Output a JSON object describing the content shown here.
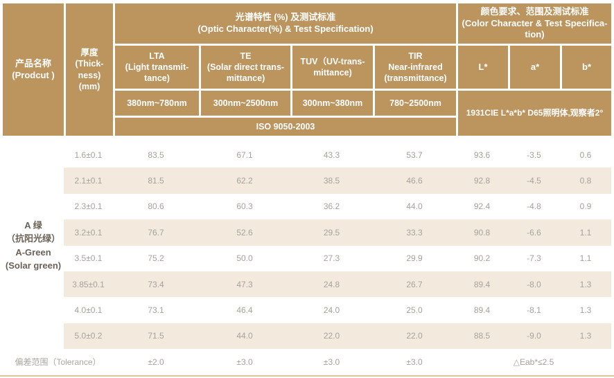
{
  "colors": {
    "header_bg": "#bb945e",
    "stripe_bg": "#f3eadd",
    "value_text": "#a5a29d",
    "product_text": "#6b6157",
    "tolerance_text": "#aaa69f",
    "bottom_line": "#ddc59e"
  },
  "header": {
    "product_col": "产品名称\n(Prodcut )",
    "thickness_col": "厚度\n(Thick-\nness)\n(mm)",
    "optic_section": "光谱特性 (%) 及测试标准\n(Optic Character(%) & Test Specification)",
    "color_section": "颜色要求、范围及测试标准\n(Color Character & Test Specifica-\ntion)",
    "columns": {
      "lta": {
        "title": "LTA\n(Light transmit-\ntance)",
        "range": "380nm~780nm"
      },
      "te": {
        "title": "TE\n(Solar direct trans-\nmittance)",
        "range": "300nm~2500nm"
      },
      "tuv": {
        "title": "TUV（UV-trans-\nmittance)",
        "range": "300nm~380nm"
      },
      "tir": {
        "title": "TIR\nNear-infrared\n(transmittance)",
        "range": "780~2500nm"
      },
      "l": "L*",
      "a": "a*",
      "b": "b*"
    },
    "iso_standard": "ISO 9050-2003",
    "cie_standard": "1931CIE L*a*b*  D65照明体,观察者2°"
  },
  "product": {
    "name": "A 绿\n（抗阳光绿）\nA-Green\n(Solar green)"
  },
  "rows": [
    {
      "thickness": "1.6±0.1",
      "lta": "83.5",
      "te": "67.1",
      "tuv": "43.3",
      "tir": "53.7",
      "l": "93.6",
      "a": "-3.5",
      "b": "0.6"
    },
    {
      "thickness": "2.1±0.1",
      "lta": "81.5",
      "te": "62.2",
      "tuv": "38.5",
      "tir": "46.6",
      "l": "92.8",
      "a": "-4.5",
      "b": "0.8"
    },
    {
      "thickness": "2.3±0.1",
      "lta": "80.6",
      "te": "60.3",
      "tuv": "36.2",
      "tir": "44.0",
      "l": "92.4",
      "a": "-4.8",
      "b": "0.9"
    },
    {
      "thickness": "3.2±0.1",
      "lta": "76.7",
      "te": "52.6",
      "tuv": "29.5",
      "tir": "33.3",
      "l": "90.8",
      "a": "-6.6",
      "b": "1.1"
    },
    {
      "thickness": "3.5±0.1",
      "lta": "75.2",
      "te": "50.0",
      "tuv": "27.3",
      "tir": "29.9",
      "l": "90.2",
      "a": "-7.3",
      "b": "1.1"
    },
    {
      "thickness": "3.85±0.1",
      "lta": "73.4",
      "te": "47.3",
      "tuv": "24.8",
      "tir": "26.7",
      "l": "89.4",
      "a": "-8.0",
      "b": "1.3"
    },
    {
      "thickness": "4.0±0.1",
      "lta": "73.1",
      "te": "46.4",
      "tuv": "24.0",
      "tir": "25.0",
      "l": "89.4",
      "a": "-8.1",
      "b": "1.3"
    },
    {
      "thickness": "5.0±0.2",
      "lta": "71.5",
      "te": "44.0",
      "tuv": "22.0",
      "tir": "22.0",
      "l": "88.5",
      "a": "-9.0",
      "b": "1.3"
    }
  ],
  "tolerance": {
    "label": "偏差范围（Tolerance）",
    "lta": "±2.0",
    "te": "±3.0",
    "tuv": "±3.0",
    "tir": "±3.0",
    "eab": "△Eab*≤2.5"
  }
}
